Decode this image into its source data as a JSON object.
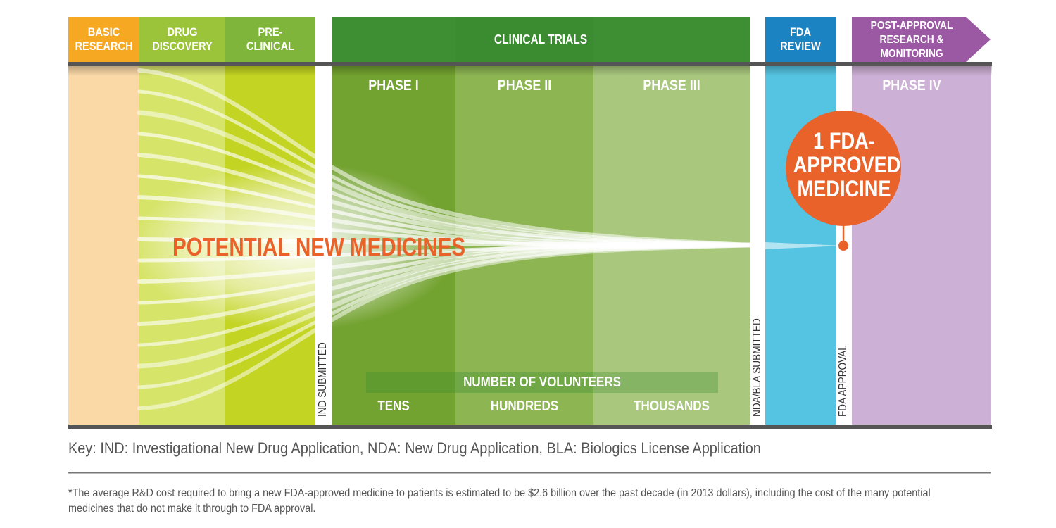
{
  "header": {
    "basic_research": [
      "BASIC",
      "RESEARCH"
    ],
    "drug_discovery": [
      "DRUG",
      "DISCOVERY"
    ],
    "preclinical": [
      "PRE-",
      "CLINICAL"
    ],
    "clinical_trials": "CLINICAL TRIALS",
    "fda_review": [
      "FDA",
      "REVIEW"
    ],
    "post_approval": [
      "POST-APPROVAL",
      "RESEARCH &",
      "MONITORING"
    ]
  },
  "phases": {
    "phase1": "PHASE I",
    "phase2": "PHASE II",
    "phase3": "PHASE III",
    "phase4": "PHASE IV"
  },
  "milestones": {
    "ind": "IND SUBMITTED",
    "nda": "NDA/BLA SUBMITTED",
    "approval": "FDA APPROVAL"
  },
  "volunteers": {
    "title": "NUMBER OF VOLUNTEERS",
    "tens": "TENS",
    "hundreds": "HUNDREDS",
    "thousands": "THOUSANDS"
  },
  "hero_label": "POTENTIAL NEW MEDICINES",
  "badge": [
    "1 FDA-",
    "APPROVED",
    "MEDICINE"
  ],
  "key": "Key: IND: Investigational New Drug Application, NDA: New Drug Application, BLA: Biologics License Application",
  "footnote": "*The average R&D cost required to bring a new FDA-approved medicine to patients is estimated to be $2.6 billion over the past decade (in 2013 dollars), including the cost of the many potential medicines that do not make it through to FDA approval.",
  "colors": {
    "basic": "#fbd9a7",
    "basic_header": "#f7a823",
    "discovery": "#d7e46a",
    "discovery_header": "#9cc43a",
    "preclinical": "#c3d422",
    "preclinical_header": "#8bbd3a",
    "clinical_header": "#3e8e33",
    "phase1": "#72a22f",
    "phase2": "#8db552",
    "phase3": "#a9c87e",
    "review": "#55c4e2",
    "review_header": "#1c83c2",
    "post": "#cdb0d5",
    "post_header": "#9b59a4",
    "accent": "#e8622a"
  }
}
